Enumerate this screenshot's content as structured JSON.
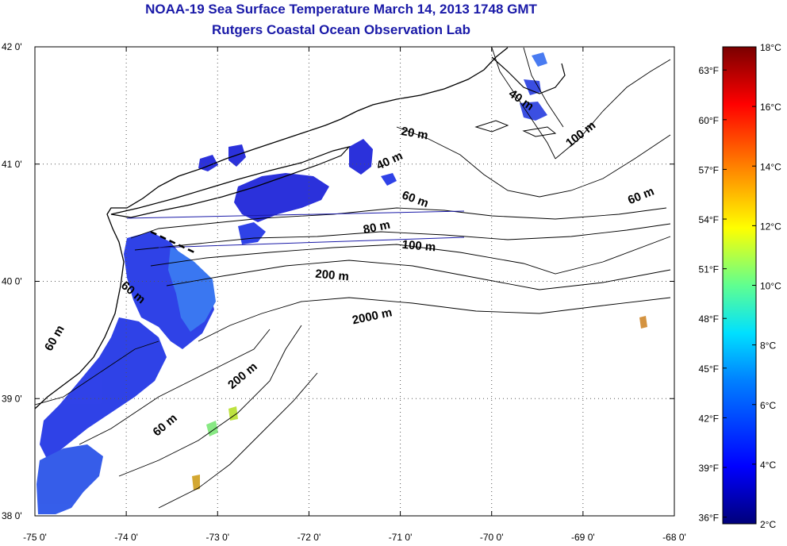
{
  "title_line1": "NOAA-19 Sea Surface Temperature March 14, 2013 1748 GMT",
  "title_line2": "Rutgers Coastal Ocean Observation Lab",
  "axes": {
    "x_ticks": [
      "-75 0'",
      "-74 0'",
      "-73 0'",
      "-72 0'",
      "-71 0'",
      "-70 0'",
      "-69 0'",
      "-68 0'"
    ],
    "y_ticks": [
      "42 0'",
      "41 0'",
      "40 0'",
      "39 0'",
      "38 0'"
    ],
    "lon_range": [
      -75,
      -68
    ],
    "lat_range": [
      38,
      42
    ]
  },
  "colorbar": {
    "celsius_labels": [
      "18°C",
      "16°C",
      "14°C",
      "12°C",
      "10°C",
      "8°C",
      "6°C",
      "4°C",
      "2°C"
    ],
    "fahrenheit_labels": [
      "63°F",
      "60°F",
      "57°F",
      "54°F",
      "51°F",
      "48°F",
      "45°F",
      "42°F",
      "39°F",
      "36°F"
    ],
    "celsius_range": [
      2,
      18
    ]
  },
  "depth_labels": [
    {
      "text": "20 m",
      "lon": -70.85,
      "lat": 41.23,
      "rot": 10
    },
    {
      "text": "40 m",
      "lon": -71.1,
      "lat": 41.0,
      "rot": -25
    },
    {
      "text": "40 m",
      "lon": -69.7,
      "lat": 41.52,
      "rot": 35
    },
    {
      "text": "100 m",
      "lon": -69.0,
      "lat": 41.23,
      "rot": -38
    },
    {
      "text": "60 m",
      "lon": -70.85,
      "lat": 40.67,
      "rot": 20
    },
    {
      "text": "60 m",
      "lon": -68.35,
      "lat": 40.7,
      "rot": -22
    },
    {
      "text": "80 m",
      "lon": -71.25,
      "lat": 40.43,
      "rot": -12
    },
    {
      "text": "100 m",
      "lon": -70.8,
      "lat": 40.27,
      "rot": 5
    },
    {
      "text": "200 m",
      "lon": -71.75,
      "lat": 40.02,
      "rot": 5
    },
    {
      "text": "2000 m",
      "lon": -71.3,
      "lat": 39.67,
      "rot": -12
    },
    {
      "text": "60 m",
      "lon": -73.95,
      "lat": 39.88,
      "rot": 40
    },
    {
      "text": "60 m",
      "lon": -74.75,
      "lat": 39.5,
      "rot": -60
    },
    {
      "text": "200 m",
      "lon": -72.7,
      "lat": 39.17,
      "rot": -40
    },
    {
      "text": "60 m",
      "lon": -73.55,
      "lat": 38.75,
      "rot": -40
    }
  ],
  "colors": {
    "title": "#1a1aa8",
    "axis": "#000000",
    "grid": "#555555",
    "sst_core": "#1e32e6",
    "sst_warm": "#2a6cf0"
  }
}
